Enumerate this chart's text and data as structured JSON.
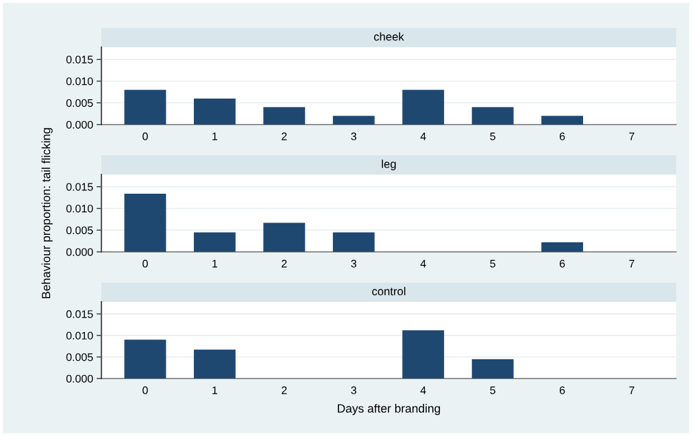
{
  "chart_data": [
    {
      "type": "bar",
      "title": "cheek",
      "categories": [
        "0",
        "1",
        "2",
        "3",
        "4",
        "5",
        "6",
        "7"
      ],
      "values": [
        0.008,
        0.006,
        0.004,
        0.002,
        0.008,
        0.004,
        0.002,
        0
      ],
      "color": "#1f4870",
      "ylim": [
        0,
        0.0178
      ],
      "yticks": [
        {
          "value": 0,
          "label": "0.000"
        },
        {
          "value": 0.005,
          "label": "0.005"
        },
        {
          "value": 0.01,
          "label": "0.010"
        },
        {
          "value": 0.015,
          "label": "0.015"
        }
      ],
      "grid": "y"
    },
    {
      "type": "bar",
      "title": "leg",
      "ylabel": "Behaviour proportion: tail flicking",
      "categories": [
        "0",
        "1",
        "2",
        "3",
        "4",
        "5",
        "6",
        "7"
      ],
      "values": [
        0.0134,
        0.0045,
        0.0067,
        0.0045,
        0,
        0,
        0.0022,
        0
      ],
      "color": "#1f4870",
      "ylim": [
        0,
        0.0178
      ],
      "yticks": [
        {
          "value": 0,
          "label": "0.000"
        },
        {
          "value": 0.005,
          "label": "0.005"
        },
        {
          "value": 0.01,
          "label": "0.010"
        },
        {
          "value": 0.015,
          "label": "0.015"
        }
      ],
      "grid": "y"
    },
    {
      "type": "bar",
      "title": "control",
      "xlabel": "Days after branding",
      "categories": [
        "0",
        "1",
        "2",
        "3",
        "4",
        "5",
        "6",
        "7"
      ],
      "values": [
        0.009,
        0.0067,
        0,
        0,
        0.0112,
        0.0045,
        0,
        0
      ],
      "color": "#1f4870",
      "ylim": [
        0,
        0.0178
      ],
      "yticks": [
        {
          "value": 0,
          "label": "0.000"
        },
        {
          "value": 0.005,
          "label": "0.005"
        },
        {
          "value": 0.01,
          "label": "0.010"
        },
        {
          "value": 0.015,
          "label": "0.015"
        }
      ],
      "grid": "y"
    }
  ]
}
